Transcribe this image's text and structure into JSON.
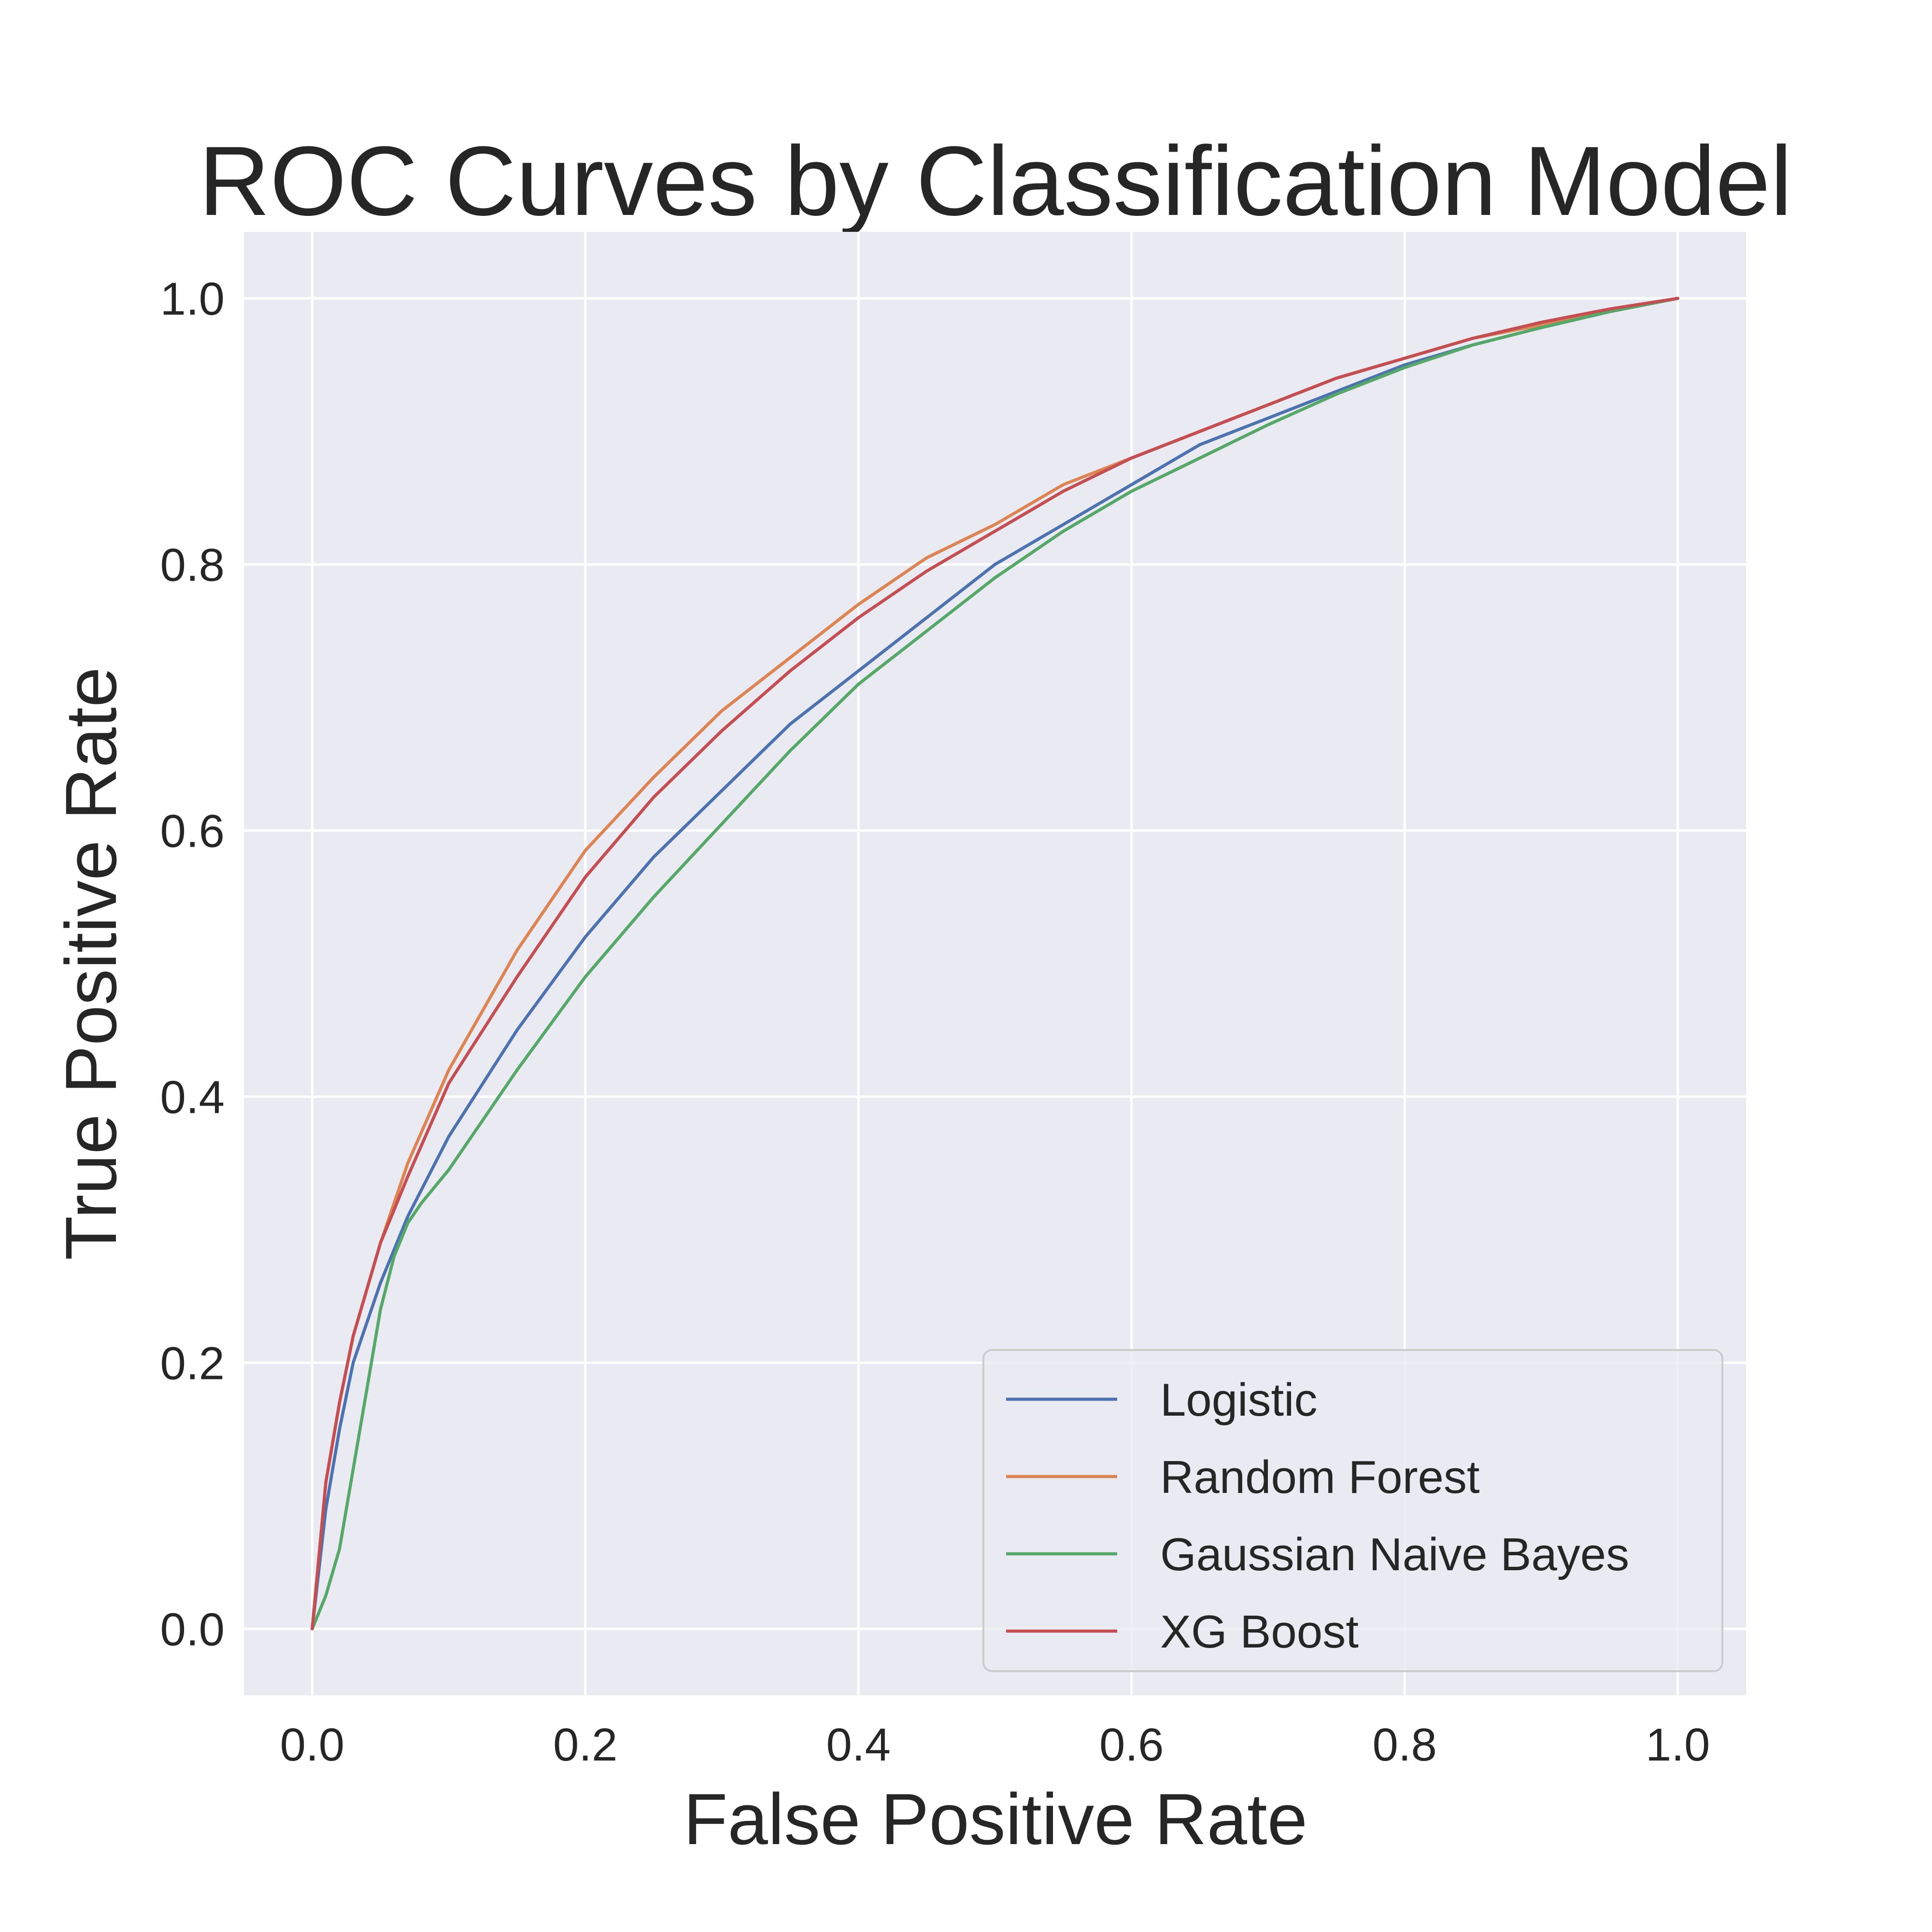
{
  "chart_data": {
    "type": "line",
    "title": "ROC Curves by Classification Model",
    "xlabel": "False Positive Rate",
    "ylabel": "True Positive Rate",
    "xlim": [
      -0.05,
      1.05
    ],
    "ylim": [
      -0.05,
      1.05
    ],
    "xticks": [
      0.0,
      0.2,
      0.4,
      0.6,
      0.8,
      1.0
    ],
    "yticks": [
      0.0,
      0.2,
      0.4,
      0.6,
      0.8,
      1.0
    ],
    "xtick_labels": [
      "0.0",
      "0.2",
      "0.4",
      "0.6",
      "0.8",
      "1.0"
    ],
    "ytick_labels": [
      "0.0",
      "0.2",
      "0.4",
      "0.6",
      "0.8",
      "1.0"
    ],
    "grid": true,
    "legend_position": "lower-right",
    "background": "#eaeaf2",
    "series": [
      {
        "name": "Logistic",
        "color": "#4c72b0",
        "points": [
          [
            0,
            0
          ],
          [
            0.01,
            0.09
          ],
          [
            0.02,
            0.15
          ],
          [
            0.03,
            0.2
          ],
          [
            0.05,
            0.26
          ],
          [
            0.07,
            0.31
          ],
          [
            0.1,
            0.37
          ],
          [
            0.15,
            0.45
          ],
          [
            0.2,
            0.52
          ],
          [
            0.25,
            0.58
          ],
          [
            0.3,
            0.63
          ],
          [
            0.35,
            0.68
          ],
          [
            0.4,
            0.72
          ],
          [
            0.45,
            0.76
          ],
          [
            0.5,
            0.8
          ],
          [
            0.55,
            0.83
          ],
          [
            0.6,
            0.86
          ],
          [
            0.65,
            0.89
          ],
          [
            0.7,
            0.91
          ],
          [
            0.75,
            0.93
          ],
          [
            0.8,
            0.95
          ],
          [
            0.85,
            0.965
          ],
          [
            0.9,
            0.978
          ],
          [
            0.95,
            0.99
          ],
          [
            1.0,
            1.0
          ]
        ]
      },
      {
        "name": "Random Forest",
        "color": "#dd8452",
        "points": [
          [
            0,
            0
          ],
          [
            0.01,
            0.11
          ],
          [
            0.02,
            0.17
          ],
          [
            0.03,
            0.22
          ],
          [
            0.05,
            0.29
          ],
          [
            0.07,
            0.35
          ],
          [
            0.1,
            0.42
          ],
          [
            0.15,
            0.51
          ],
          [
            0.2,
            0.585
          ],
          [
            0.25,
            0.64
          ],
          [
            0.3,
            0.69
          ],
          [
            0.35,
            0.73
          ],
          [
            0.4,
            0.77
          ],
          [
            0.45,
            0.805
          ],
          [
            0.5,
            0.83
          ],
          [
            0.55,
            0.86
          ],
          [
            0.6,
            0.88
          ],
          [
            0.65,
            0.9
          ],
          [
            0.7,
            0.92
          ],
          [
            0.75,
            0.94
          ],
          [
            0.8,
            0.955
          ],
          [
            0.85,
            0.97
          ],
          [
            0.9,
            0.98
          ],
          [
            0.95,
            0.99
          ],
          [
            1.0,
            1.0
          ]
        ]
      },
      {
        "name": "Gaussian Naive Bayes",
        "color": "#55a868",
        "points": [
          [
            0,
            0
          ],
          [
            0.01,
            0.025
          ],
          [
            0.02,
            0.06
          ],
          [
            0.03,
            0.12
          ],
          [
            0.04,
            0.18
          ],
          [
            0.05,
            0.24
          ],
          [
            0.06,
            0.28
          ],
          [
            0.07,
            0.305
          ],
          [
            0.08,
            0.32
          ],
          [
            0.1,
            0.345
          ],
          [
            0.15,
            0.42
          ],
          [
            0.2,
            0.49
          ],
          [
            0.25,
            0.55
          ],
          [
            0.3,
            0.605
          ],
          [
            0.35,
            0.66
          ],
          [
            0.4,
            0.71
          ],
          [
            0.45,
            0.75
          ],
          [
            0.5,
            0.79
          ],
          [
            0.55,
            0.825
          ],
          [
            0.6,
            0.855
          ],
          [
            0.65,
            0.88
          ],
          [
            0.7,
            0.905
          ],
          [
            0.75,
            0.928
          ],
          [
            0.8,
            0.948
          ],
          [
            0.85,
            0.965
          ],
          [
            0.9,
            0.978
          ],
          [
            0.95,
            0.99
          ],
          [
            1.0,
            1.0
          ]
        ]
      },
      {
        "name": "XG Boost",
        "color": "#c44e52",
        "points": [
          [
            0,
            0
          ],
          [
            0.01,
            0.11
          ],
          [
            0.02,
            0.17
          ],
          [
            0.03,
            0.22
          ],
          [
            0.05,
            0.29
          ],
          [
            0.07,
            0.34
          ],
          [
            0.1,
            0.41
          ],
          [
            0.15,
            0.49
          ],
          [
            0.2,
            0.565
          ],
          [
            0.25,
            0.625
          ],
          [
            0.3,
            0.675
          ],
          [
            0.35,
            0.72
          ],
          [
            0.4,
            0.76
          ],
          [
            0.45,
            0.795
          ],
          [
            0.5,
            0.825
          ],
          [
            0.55,
            0.855
          ],
          [
            0.6,
            0.88
          ],
          [
            0.65,
            0.9
          ],
          [
            0.7,
            0.92
          ],
          [
            0.75,
            0.94
          ],
          [
            0.8,
            0.955
          ],
          [
            0.85,
            0.97
          ],
          [
            0.9,
            0.982
          ],
          [
            0.95,
            0.992
          ],
          [
            1.0,
            1.0
          ]
        ]
      }
    ]
  }
}
